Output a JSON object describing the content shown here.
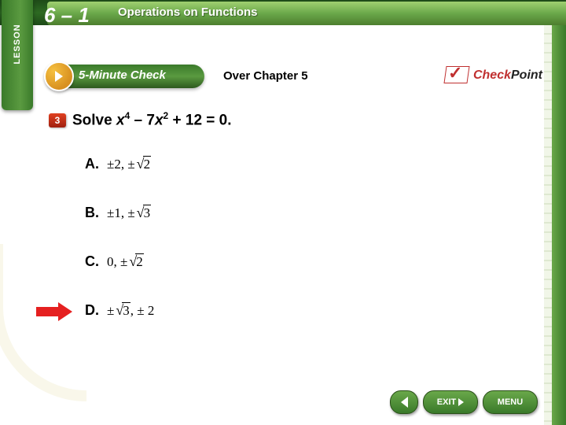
{
  "header": {
    "lesson_tab": "LESSON",
    "lesson_number": "6 – 1",
    "title": "Operations on Functions"
  },
  "fmc": {
    "text": "5-Minute Check"
  },
  "over_chapter": "Over Chapter 5",
  "checkpoint": {
    "check": "Check",
    "point": "Point"
  },
  "question": {
    "number": "3",
    "prefix": "Solve ",
    "eq_p1": "x",
    "eq_sup1": "4",
    "eq_p2": " – 7",
    "eq_p3": "x",
    "eq_sup2": "2",
    "eq_p4": " + 12 = 0."
  },
  "choices": {
    "a": {
      "label": "A.",
      "pm1": "±2,  ±",
      "rad": "2"
    },
    "b": {
      "label": "B.",
      "pm1": "±1,  ±",
      "rad": "3"
    },
    "c": {
      "label": "C.",
      "pm1": "0,  ±",
      "rad": "2"
    },
    "d": {
      "label": "D.",
      "pm1": "±",
      "rad": "3",
      "pm2": ",  ± 2"
    }
  },
  "nav": {
    "exit": "EXIT",
    "menu": "MENU"
  },
  "answer": "D"
}
